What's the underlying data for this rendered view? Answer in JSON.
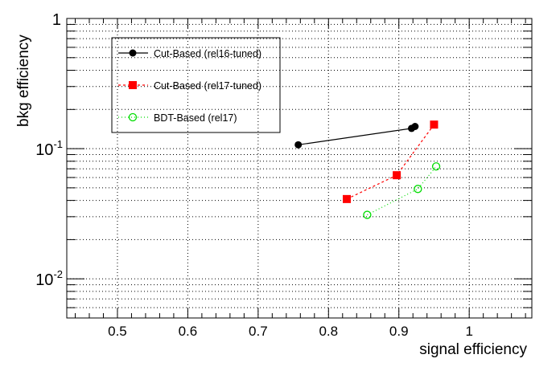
{
  "chart_data": {
    "type": "line",
    "title": "",
    "xlabel": "signal efficiency",
    "ylabel": "bkg efficiency",
    "xlim": [
      0.428,
      1.089
    ],
    "ylim": [
      0.005,
      1
    ],
    "yscale": "log",
    "grid": true,
    "legend_position": "top-left",
    "x_ticks": [
      0.5,
      0.6,
      0.7,
      0.8,
      0.9,
      1
    ],
    "x_tick_labels": [
      "0.5",
      "0.6",
      "0.7",
      "0.8",
      "0.9",
      "1"
    ],
    "y_tick_labels": [
      {
        "base": "1",
        "exp": ""
      },
      {
        "base": "10",
        "exp": "-1"
      },
      {
        "base": "10",
        "exp": "-2"
      }
    ],
    "series": [
      {
        "name": "Cut-Based (rel16-tuned)",
        "color": "#000000",
        "marker": "filled-circle",
        "line": "solid",
        "x": [
          0.757,
          0.918,
          0.923
        ],
        "y": [
          0.107,
          0.143,
          0.148
        ]
      },
      {
        "name": "Cut-Based (rel17-tuned)",
        "color": "#ff0000",
        "marker": "filled-square",
        "line": "dashed",
        "x": [
          0.826,
          0.897,
          0.95
        ],
        "y": [
          0.041,
          0.0625,
          0.153
        ]
      },
      {
        "name": "BDT-Based (rel17)",
        "color": "#00dd00",
        "marker": "open-circle",
        "line": "dotted",
        "x": [
          0.855,
          0.927,
          0.953
        ],
        "y": [
          0.031,
          0.049,
          0.073
        ]
      }
    ]
  }
}
